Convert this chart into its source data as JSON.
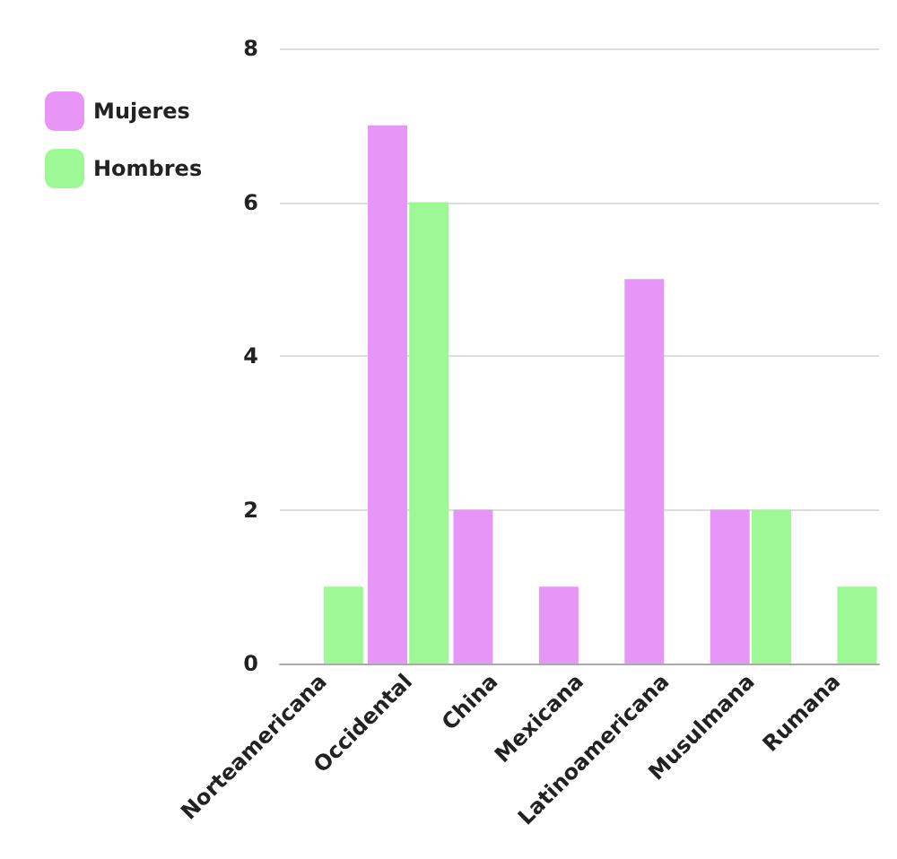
{
  "chart_data": {
    "type": "bar",
    "categories": [
      "Norteamericana",
      "Occidental",
      "China",
      "Mexicana",
      "Latinoamericana",
      "Musulmana",
      "Rumana"
    ],
    "series": [
      {
        "name": "Mujeres",
        "color": "#e796f8",
        "values": [
          0,
          7,
          2,
          1,
          5,
          2,
          0
        ]
      },
      {
        "name": "Hombres",
        "color": "#9cf994",
        "values": [
          1,
          6,
          0,
          0,
          0,
          2,
          1
        ]
      }
    ],
    "ylim": [
      0,
      8
    ],
    "yticks": [
      0,
      2,
      4,
      6,
      8
    ],
    "grid": "y",
    "legend": "top left"
  }
}
